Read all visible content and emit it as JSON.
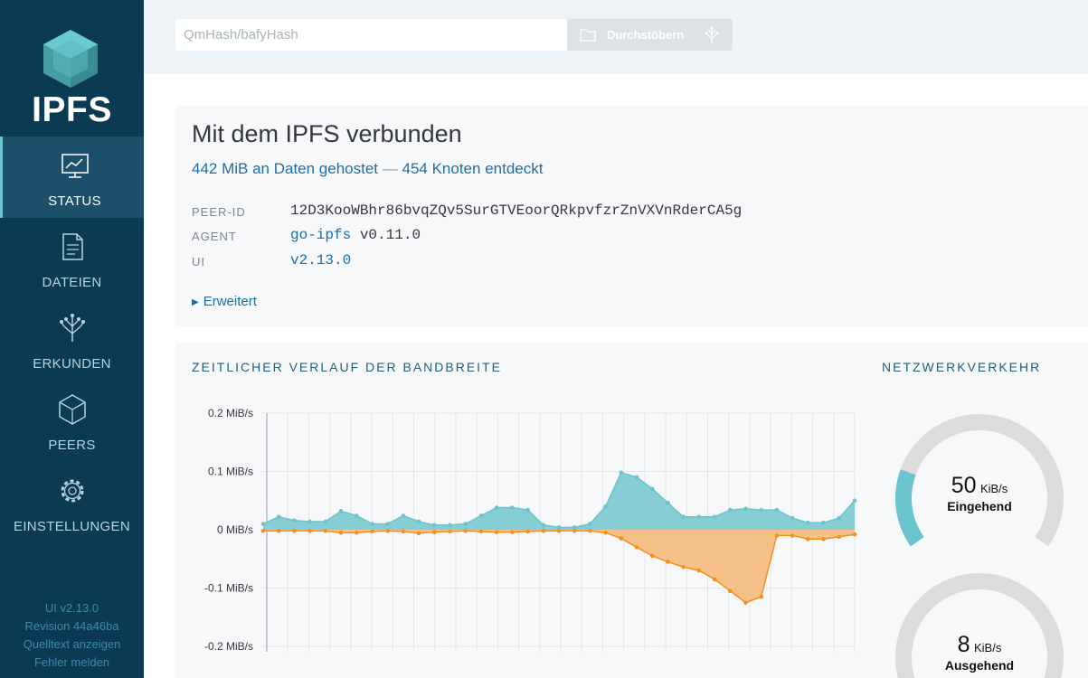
{
  "sidebar": {
    "logo_text": "IPFS",
    "items": [
      {
        "label": "STATUS",
        "icon": "status-icon",
        "active": true
      },
      {
        "label": "DATEIEN",
        "icon": "files-icon",
        "active": false
      },
      {
        "label": "ERKUNDEN",
        "icon": "explore-icon",
        "active": false
      },
      {
        "label": "PEERS",
        "icon": "peers-icon",
        "active": false
      },
      {
        "label": "EINSTELLUNGEN",
        "icon": "settings-icon",
        "active": false
      }
    ],
    "footer": {
      "version": "UI v2.13.0",
      "revision": "Revision 44a46ba",
      "source_link": "Quelltext anzeigen",
      "report_link": "Fehler melden"
    }
  },
  "header": {
    "search_placeholder": "QmHash/bafyHash",
    "search_value": "",
    "browse_label": "Durchstöbern"
  },
  "status": {
    "title": "Mit dem IPFS verbunden",
    "hosted": "442 MiB an Daten gehostet",
    "separator": "—",
    "peers_found": "454 Knoten entdeckt",
    "rows": [
      {
        "key": "PEER-ID",
        "value": "12D3KooWBhr86bvqZQv5SurGTVEoorQRkpvfzrZnVXVnRderCA5g"
      },
      {
        "key": "AGENT",
        "link": "go-ipfs",
        "value": "v0.11.0"
      },
      {
        "key": "UI",
        "link": "v2.13.0",
        "value": ""
      }
    ],
    "advanced_label": "Erweitert"
  },
  "bandwidth": {
    "title": "ZEITLICHER VERLAUF DER BANDBREITE",
    "colors": {
      "in": "#69c4cd",
      "in_fill": "#86cdd4",
      "out": "#f39021",
      "out_fill": "#f6c089",
      "grid": "#e3e5e7",
      "axis": "#9aa0a6"
    }
  },
  "traffic": {
    "title": "NETZWERKVERKEHR",
    "incoming": {
      "value": "50",
      "unit": "KiB/s",
      "label": "Eingehend",
      "fraction": 0.22
    },
    "outgoing": {
      "value": "8",
      "unit": "KiB/s",
      "label": "Ausgehend",
      "fraction": 0.04
    },
    "colors": {
      "track": "#dcdcdc",
      "in": "#69c4cd",
      "out": "#f39021"
    }
  },
  "chart_data": {
    "type": "area",
    "ylabel": "",
    "xlabel": "",
    "y_unit": "MiB/s",
    "yticks": [
      "0.2 MiB/s",
      "0.1 MiB/s",
      "0 MiB/s",
      "-0.1 MiB/s",
      "-0.2 MiB/s"
    ],
    "ylim": [
      -0.2,
      0.2
    ],
    "grid": true,
    "x_tick_count": 29,
    "series": [
      {
        "values": [
          0.01,
          0.022,
          0.016,
          0.014,
          0.014,
          0.032,
          0.024,
          0.01,
          0.01,
          0.024,
          0.014,
          0.008,
          0.008,
          0.01,
          0.024,
          0.038,
          0.038,
          0.034,
          0.008,
          0.004,
          0.004,
          0.01,
          0.04,
          0.098,
          0.09,
          0.07,
          0.046,
          0.022,
          0.022,
          0.022,
          0.034,
          0.036,
          0.034,
          0.034,
          0.02,
          0.012,
          0.012,
          0.02,
          0.05
        ]
      },
      {
        "values": [
          -0.002,
          -0.002,
          -0.002,
          -0.002,
          -0.002,
          -0.005,
          -0.005,
          -0.003,
          -0.002,
          -0.003,
          -0.006,
          -0.004,
          -0.003,
          -0.002,
          -0.003,
          -0.004,
          -0.004,
          -0.003,
          -0.002,
          -0.002,
          -0.002,
          -0.002,
          -0.005,
          -0.015,
          -0.03,
          -0.045,
          -0.055,
          -0.064,
          -0.07,
          -0.085,
          -0.105,
          -0.125,
          -0.115,
          -0.01,
          -0.01,
          -0.016,
          -0.016,
          -0.012,
          -0.008
        ]
      }
    ]
  }
}
